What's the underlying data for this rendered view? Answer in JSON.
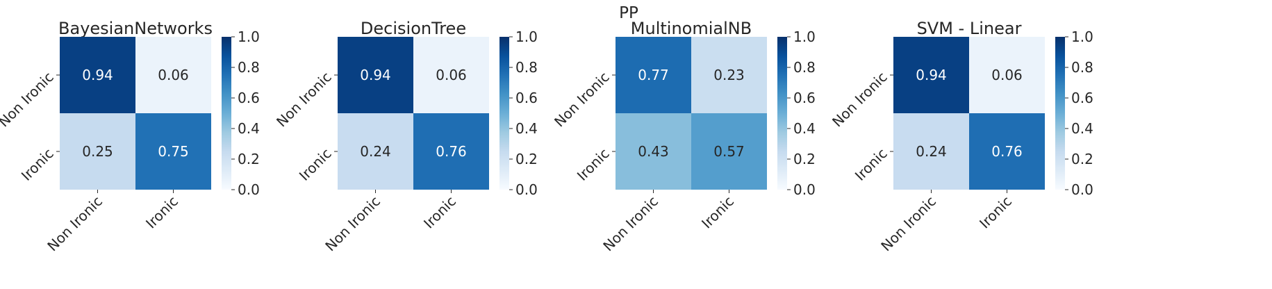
{
  "figure": {
    "title": "PP"
  },
  "chart_data": [
    {
      "type": "heatmap",
      "title": "BayesianNetworks",
      "x_categories": [
        "Non Ironic",
        "Ironic"
      ],
      "y_categories": [
        "Non Ironic",
        "Ironic"
      ],
      "values": [
        [
          0.94,
          0.06
        ],
        [
          0.25,
          0.75
        ]
      ],
      "value_labels": [
        [
          "0.94",
          "0.06"
        ],
        [
          "0.25",
          "0.75"
        ]
      ],
      "colorbar": {
        "range": [
          0.0,
          1.0
        ],
        "ticks": [
          "0.0",
          "0.2",
          "0.4",
          "0.6",
          "0.8",
          "1.0"
        ],
        "colormap": "Blues"
      }
    },
    {
      "type": "heatmap",
      "title": "DecisionTree",
      "x_categories": [
        "Non Ironic",
        "Ironic"
      ],
      "y_categories": [
        "Non Ironic",
        "Ironic"
      ],
      "values": [
        [
          0.94,
          0.06
        ],
        [
          0.24,
          0.76
        ]
      ],
      "value_labels": [
        [
          "0.94",
          "0.06"
        ],
        [
          "0.24",
          "0.76"
        ]
      ],
      "colorbar": {
        "range": [
          0.0,
          1.0
        ],
        "ticks": [
          "0.0",
          "0.2",
          "0.4",
          "0.6",
          "0.8",
          "1.0"
        ],
        "colormap": "Blues"
      }
    },
    {
      "type": "heatmap",
      "title": "MultinomialNB",
      "x_categories": [
        "Non Ironic",
        "Ironic"
      ],
      "y_categories": [
        "Non Ironic",
        "Ironic"
      ],
      "values": [
        [
          0.77,
          0.23
        ],
        [
          0.43,
          0.57
        ]
      ],
      "value_labels": [
        [
          "0.77",
          "0.23"
        ],
        [
          "0.43",
          "0.57"
        ]
      ],
      "colorbar": {
        "range": [
          0.0,
          1.0
        ],
        "ticks": [
          "0.0",
          "0.2",
          "0.4",
          "0.6",
          "0.8",
          "1.0"
        ],
        "colormap": "Blues"
      }
    },
    {
      "type": "heatmap",
      "title": "SVM - Linear",
      "x_categories": [
        "Non Ironic",
        "Ironic"
      ],
      "y_categories": [
        "Non Ironic",
        "Ironic"
      ],
      "values": [
        [
          0.94,
          0.06
        ],
        [
          0.24,
          0.76
        ]
      ],
      "value_labels": [
        [
          "0.94",
          "0.06"
        ],
        [
          "0.24",
          "0.76"
        ]
      ],
      "colorbar": {
        "range": [
          0.0,
          1.0
        ],
        "ticks": [
          "0.0",
          "0.2",
          "0.4",
          "0.6",
          "0.8",
          "1.0"
        ],
        "colormap": "Blues"
      }
    }
  ]
}
